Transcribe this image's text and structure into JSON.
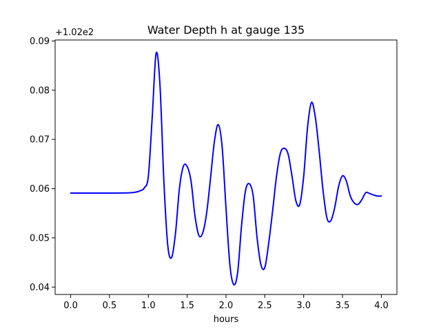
{
  "chart_data": {
    "type": "line",
    "title": "Water Depth h at gauge 135",
    "xlabel": "hours",
    "ylabel": "",
    "offset_label": "+1.02e2",
    "xlim": [
      -0.2,
      4.2
    ],
    "ylim": [
      0.0385,
      0.0902
    ],
    "grid": false,
    "x_ticks": [
      0.0,
      0.5,
      1.0,
      1.5,
      2.0,
      2.5,
      3.0,
      3.5,
      4.0
    ],
    "x_tick_labels": [
      "0.0",
      "0.5",
      "1.0",
      "1.5",
      "2.0",
      "2.5",
      "3.0",
      "3.5",
      "4.0"
    ],
    "y_ticks": [
      0.04,
      0.05,
      0.06,
      0.07,
      0.08,
      0.09
    ],
    "y_tick_labels": [
      "0.04",
      "0.05",
      "0.06",
      "0.07",
      "0.08",
      "0.09"
    ],
    "series": [
      {
        "color": "#0000ff",
        "x": [
          0.0,
          0.2,
          0.4,
          0.6,
          0.8,
          0.9,
          0.95,
          1.0,
          1.05,
          1.1,
          1.15,
          1.2,
          1.25,
          1.3,
          1.35,
          1.4,
          1.45,
          1.5,
          1.55,
          1.6,
          1.65,
          1.7,
          1.75,
          1.8,
          1.85,
          1.9,
          1.95,
          2.0,
          2.05,
          2.1,
          2.15,
          2.2,
          2.25,
          2.3,
          2.35,
          2.4,
          2.45,
          2.5,
          2.55,
          2.6,
          2.65,
          2.7,
          2.75,
          2.8,
          2.85,
          2.9,
          2.95,
          3.0,
          3.05,
          3.1,
          3.15,
          3.2,
          3.25,
          3.3,
          3.35,
          3.4,
          3.45,
          3.5,
          3.55,
          3.6,
          3.65,
          3.7,
          3.75,
          3.8,
          3.85,
          3.9,
          3.95,
          4.0
        ],
        "values": [
          0.0591,
          0.0591,
          0.0591,
          0.0591,
          0.0592,
          0.0596,
          0.0602,
          0.0625,
          0.0745,
          0.0875,
          0.081,
          0.0615,
          0.0485,
          0.046,
          0.051,
          0.06,
          0.0645,
          0.0645,
          0.0615,
          0.0545,
          0.0505,
          0.051,
          0.055,
          0.062,
          0.0695,
          0.073,
          0.0685,
          0.056,
          0.0445,
          0.0405,
          0.043,
          0.0525,
          0.0595,
          0.061,
          0.0585,
          0.05,
          0.0445,
          0.044,
          0.049,
          0.0555,
          0.0625,
          0.0672,
          0.0682,
          0.067,
          0.0625,
          0.0575,
          0.0568,
          0.0625,
          0.0725,
          0.0775,
          0.0745,
          0.0675,
          0.0595,
          0.054,
          0.0535,
          0.0562,
          0.0605,
          0.0626,
          0.0615,
          0.0585,
          0.0571,
          0.0568,
          0.0578,
          0.0592,
          0.059,
          0.0587,
          0.0585,
          0.0585
        ]
      }
    ]
  }
}
